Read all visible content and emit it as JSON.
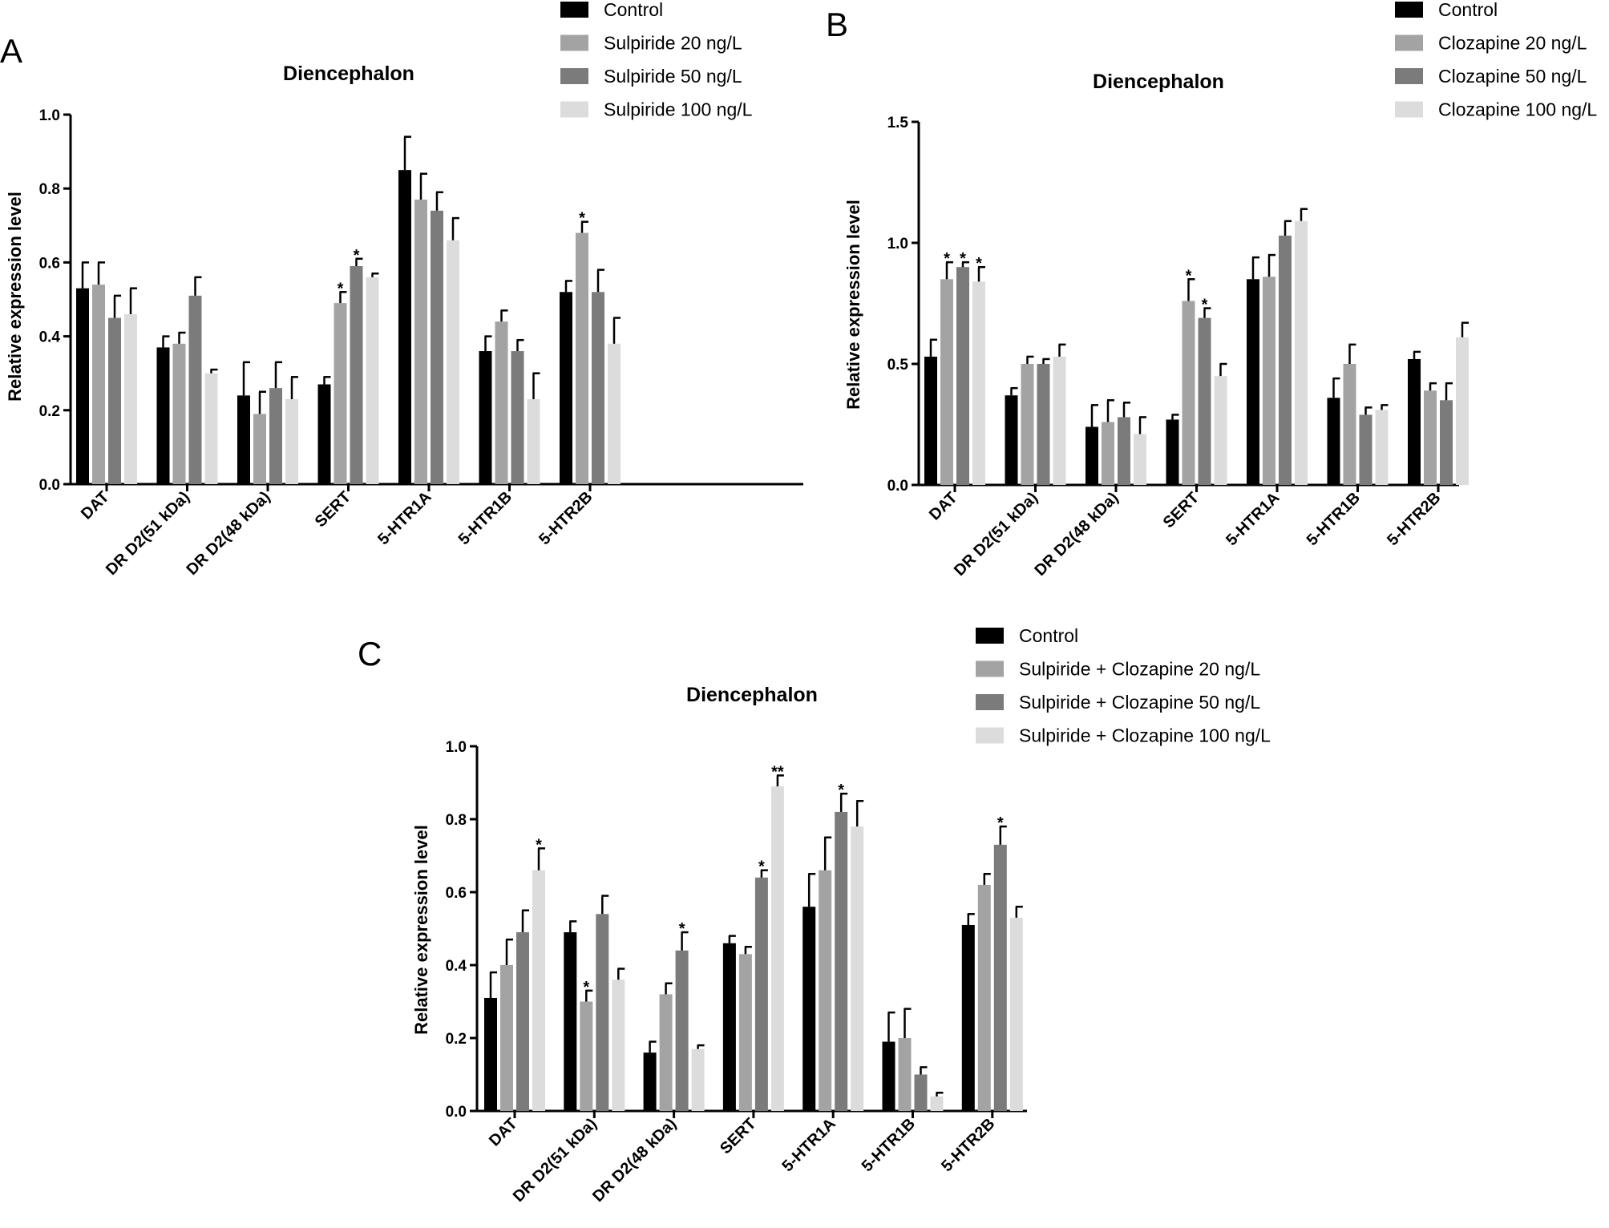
{
  "colors": {
    "series": [
      "#000000",
      "#a3a3a3",
      "#7b7b7b",
      "#dcdcdc"
    ],
    "axis": "#000000"
  },
  "chart_data": [
    {
      "panel": "A",
      "type": "bar",
      "title": "Diencephalon",
      "xlabel": "",
      "ylabel": "Relative expression level",
      "ylim": [
        0,
        1.0
      ],
      "yticks": [
        0.0,
        0.2,
        0.4,
        0.6,
        0.8,
        1.0
      ],
      "ytick_labels": [
        "0.0",
        "0.2",
        "0.4",
        "0.6",
        "0.8",
        "1.0"
      ],
      "categories": [
        "DAT",
        "DR D2(51 kDa)",
        "DR D2(48 kDa)",
        "SERT",
        "5-HTR1A",
        "5-HTR1B",
        "5-HTR2B"
      ],
      "legend_position": "top-right",
      "series": [
        {
          "name": "Control",
          "values": [
            0.53,
            0.37,
            0.24,
            0.27,
            0.85,
            0.36,
            0.52
          ],
          "errors": [
            0.07,
            0.03,
            0.09,
            0.02,
            0.09,
            0.04,
            0.03
          ],
          "stars": [
            "",
            "",
            "",
            "",
            "",
            "",
            ""
          ]
        },
        {
          "name": "Sulpiride 20 ng/L",
          "values": [
            0.54,
            0.38,
            0.19,
            0.49,
            0.77,
            0.44,
            0.68
          ],
          "errors": [
            0.06,
            0.03,
            0.06,
            0.03,
            0.07,
            0.03,
            0.03
          ],
          "stars": [
            "",
            "",
            "",
            "*",
            "",
            "",
            "*"
          ]
        },
        {
          "name": "Sulpiride 50 ng/L",
          "values": [
            0.45,
            0.51,
            0.26,
            0.59,
            0.74,
            0.36,
            0.52
          ],
          "errors": [
            0.06,
            0.05,
            0.07,
            0.02,
            0.05,
            0.03,
            0.06
          ],
          "stars": [
            "",
            "",
            "",
            "*",
            "",
            "",
            ""
          ]
        },
        {
          "name": "Sulpiride 100 ng/L",
          "values": [
            0.46,
            0.3,
            0.23,
            0.56,
            0.66,
            0.23,
            0.38
          ],
          "errors": [
            0.07,
            0.01,
            0.06,
            0.01,
            0.06,
            0.07,
            0.07
          ],
          "stars": [
            "",
            "",
            "",
            "",
            "",
            "",
            ""
          ]
        }
      ]
    },
    {
      "panel": "B",
      "type": "bar",
      "title": "Diencephalon",
      "xlabel": "",
      "ylabel": "Relative expression level",
      "ylim": [
        0,
        1.5
      ],
      "yticks": [
        0.0,
        0.5,
        1.0,
        1.5
      ],
      "ytick_labels": [
        "0.0",
        "0.5",
        "1.0",
        "1.5"
      ],
      "categories": [
        "DAT",
        "DR D2(51 kDa)",
        "DR D2(48 kDa)",
        "SERT",
        "5-HTR1A",
        "5-HTR1B",
        "5-HTR2B"
      ],
      "legend_position": "top-right",
      "series": [
        {
          "name": "Control",
          "values": [
            0.53,
            0.37,
            0.24,
            0.27,
            0.85,
            0.36,
            0.52
          ],
          "errors": [
            0.07,
            0.03,
            0.09,
            0.02,
            0.09,
            0.08,
            0.03
          ],
          "stars": [
            "",
            "",
            "",
            "",
            "",
            "",
            ""
          ]
        },
        {
          "name": "Clozapine 20 ng/L",
          "values": [
            0.85,
            0.5,
            0.26,
            0.76,
            0.86,
            0.5,
            0.39
          ],
          "errors": [
            0.07,
            0.03,
            0.09,
            0.09,
            0.09,
            0.08,
            0.03
          ],
          "stars": [
            "*",
            "",
            "",
            "*",
            "",
            "",
            ""
          ]
        },
        {
          "name": "Clozapine 50 ng/L",
          "values": [
            0.9,
            0.5,
            0.28,
            0.69,
            1.03,
            0.29,
            0.35
          ],
          "errors": [
            0.02,
            0.02,
            0.06,
            0.04,
            0.06,
            0.03,
            0.07
          ],
          "stars": [
            "*",
            "",
            "",
            "*",
            "",
            "",
            ""
          ]
        },
        {
          "name": "Clozapine 100 ng/L",
          "values": [
            0.84,
            0.53,
            0.21,
            0.45,
            1.09,
            0.31,
            0.61
          ],
          "errors": [
            0.06,
            0.05,
            0.07,
            0.05,
            0.05,
            0.02,
            0.06
          ],
          "stars": [
            "*",
            "",
            "",
            "",
            "",
            "",
            ""
          ]
        }
      ]
    },
    {
      "panel": "C",
      "type": "bar",
      "title": "Diencephalon",
      "xlabel": "",
      "ylabel": "Relative expression level",
      "ylim": [
        0,
        1.0
      ],
      "yticks": [
        0.0,
        0.2,
        0.4,
        0.6,
        0.8,
        1.0
      ],
      "ytick_labels": [
        "0.0",
        "0.2",
        "0.4",
        "0.6",
        "0.8",
        "1.0"
      ],
      "categories": [
        "DAT",
        "DR D2(51 kDa)",
        "DR D2(48 kDa)",
        "SERT",
        "5-HTR1A",
        "5-HTR1B",
        "5-HTR2B"
      ],
      "legend_position": "top-right",
      "series": [
        {
          "name": "Control",
          "values": [
            0.31,
            0.49,
            0.16,
            0.46,
            0.56,
            0.19,
            0.51
          ],
          "errors": [
            0.07,
            0.03,
            0.03,
            0.02,
            0.09,
            0.08,
            0.03
          ],
          "stars": [
            "",
            "",
            "",
            "",
            "",
            "",
            ""
          ]
        },
        {
          "name": "Sulpiride + Clozapine 20 ng/L",
          "values": [
            0.4,
            0.3,
            0.32,
            0.43,
            0.66,
            0.2,
            0.62
          ],
          "errors": [
            0.07,
            0.03,
            0.03,
            0.02,
            0.09,
            0.08,
            0.03
          ],
          "stars": [
            "",
            "*",
            "",
            "",
            "",
            "",
            ""
          ]
        },
        {
          "name": "Sulpiride + Clozapine 50 ng/L",
          "values": [
            0.49,
            0.54,
            0.44,
            0.64,
            0.82,
            0.1,
            0.73
          ],
          "errors": [
            0.06,
            0.05,
            0.05,
            0.02,
            0.05,
            0.02,
            0.05
          ],
          "stars": [
            "",
            "",
            "*",
            "*",
            "*",
            "",
            "*"
          ]
        },
        {
          "name": "Sulpiride + Clozapine 100 ng/L",
          "values": [
            0.66,
            0.36,
            0.17,
            0.89,
            0.78,
            0.04,
            0.53
          ],
          "errors": [
            0.06,
            0.03,
            0.01,
            0.03,
            0.07,
            0.01,
            0.03
          ],
          "stars": [
            "*",
            "",
            "",
            "**",
            "",
            "",
            ""
          ]
        }
      ]
    }
  ]
}
